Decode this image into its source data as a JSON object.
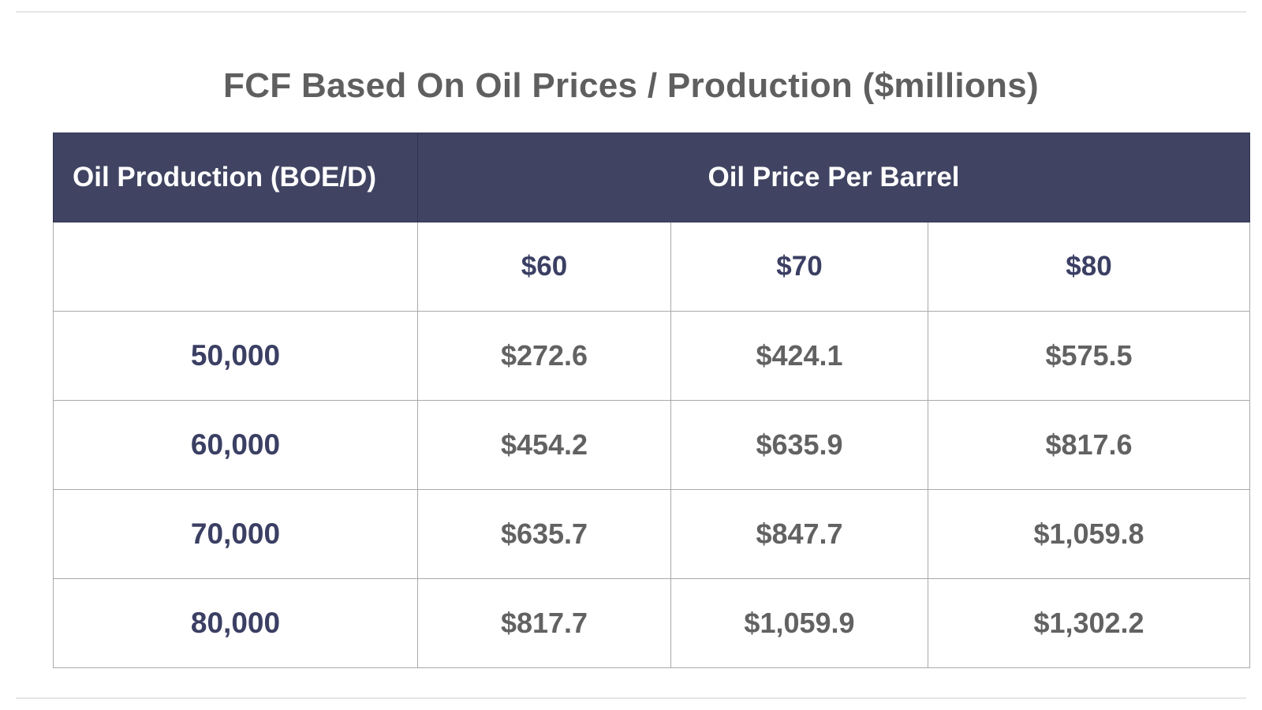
{
  "chart_data": {
    "type": "table",
    "title": "FCF Based On Oil Prices / Production ($millions)",
    "header": {
      "row_label": "Oil Production (BOE/D)",
      "column_group": "Oil Price Per Barrel"
    },
    "columns": [
      "$60",
      "$70",
      "$80"
    ],
    "rows": [
      {
        "production": "50,000",
        "values": [
          "$272.6",
          "$424.1",
          "$575.5"
        ]
      },
      {
        "production": "60,000",
        "values": [
          "$454.2",
          "$635.9",
          "$817.6"
        ]
      },
      {
        "production": "70,000",
        "values": [
          "$635.7",
          "$847.7",
          "$1,059.8"
        ]
      },
      {
        "production": "80,000",
        "values": [
          "$817.7",
          "$1,059.9",
          "$1,302.2"
        ]
      }
    ],
    "colors": {
      "header_bg": "#404462",
      "header_text": "#ffffff",
      "label_text": "#3b3f63",
      "value_text": "#626262",
      "title_text": "#5f5f5f",
      "grid": "#a9a9a9"
    }
  }
}
